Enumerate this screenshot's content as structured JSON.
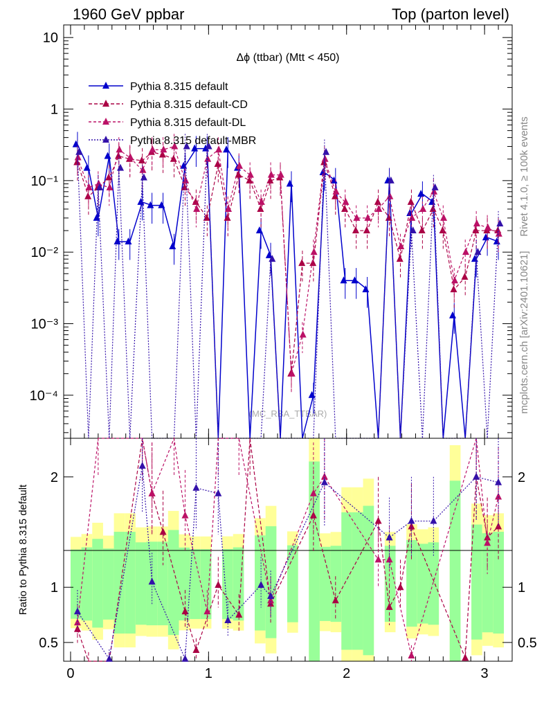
{
  "header": {
    "left": "1960 GeV ppbar",
    "right": "Top (parton level)"
  },
  "side_labels": {
    "rivet": "Rivet 4.1.0, ≥ 100k events",
    "mcplots": "mcplots.cern.ch [arXiv:2401.10621]"
  },
  "watermark": "(MC_RBA_TTBAR)",
  "chart_data": [
    {
      "type": "line",
      "title": "Δϕ (ttbar) (Mtt < 450)",
      "yscale": "log",
      "xlim": [
        -0.05,
        3.2
      ],
      "ylim": [
        2.5e-05,
        15
      ],
      "y_tick_labels": [
        "10",
        "1",
        "10⁻¹",
        "10⁻²",
        "10⁻³",
        "10⁻⁴"
      ],
      "legend": [
        "Pythia 8.315 default",
        "Pythia 8.315 default-CD",
        "Pythia 8.315 default-DL",
        "Pythia 8.315 default-MBR"
      ],
      "series": [
        {
          "name": "Pythia 8.315 default",
          "color": "#0000cc",
          "x": [
            0.05,
            0.13,
            0.2,
            0.28,
            0.35,
            0.43,
            0.52,
            0.59,
            0.67,
            0.75,
            0.83,
            0.91,
            0.99,
            1.07,
            1.14,
            1.22,
            1.3,
            1.38,
            1.45,
            1.52,
            1.6,
            1.68,
            1.76,
            1.84,
            1.92,
            1.99,
            2.07,
            2.15,
            2.23,
            2.31,
            2.39,
            2.47,
            2.55,
            2.63,
            2.7,
            2.78,
            2.86,
            2.94,
            3.02,
            3.1
          ],
          "y": [
            0.32,
            0.15,
            0.03,
            0.22,
            0.014,
            0.014,
            0.05,
            0.045,
            0.045,
            0.012,
            0.16,
            0.28,
            0.28,
            2e-05,
            0.27,
            0.15,
            2e-05,
            0.02,
            0.009,
            2e-05,
            0.09,
            2e-05,
            0.0001,
            0.13,
            0.1,
            0.004,
            0.004,
            0.003,
            2e-05,
            0.1,
            2e-05,
            0.035,
            0.065,
            0.05,
            2e-05,
            0.0013,
            2e-05,
            0.008,
            0.016,
            0.014
          ]
        },
        {
          "name": "Pythia 8.315 default-CD",
          "color": "#aa0044",
          "x": [
            0.05,
            0.13,
            0.2,
            0.28,
            0.35,
            0.43,
            0.52,
            0.59,
            0.67,
            0.75,
            0.83,
            0.91,
            0.99,
            1.07,
            1.14,
            1.22,
            1.3,
            1.38,
            1.45,
            1.52,
            1.6,
            1.68,
            1.76,
            1.84,
            1.92,
            1.99,
            2.07,
            2.15,
            2.23,
            2.31,
            2.39,
            2.47,
            2.55,
            2.63,
            2.7,
            2.78,
            2.86,
            2.94,
            3.02,
            3.1
          ],
          "y": [
            0.18,
            0.06,
            0.08,
            0.11,
            0.22,
            0.2,
            0.19,
            0.25,
            0.23,
            0.2,
            0.08,
            0.05,
            0.03,
            0.17,
            0.03,
            0.12,
            0.1,
            0.04,
            0.1,
            0.11,
            0.0002,
            0.007,
            0.007,
            0.18,
            0.06,
            0.04,
            0.02,
            0.02,
            0.05,
            0.03,
            0.008,
            0.05,
            0.02,
            0.04,
            0.02,
            0.003,
            0.0045,
            0.02,
            0.02,
            0.02
          ]
        },
        {
          "name": "Pythia 8.315 default-DL",
          "color": "#bb1166",
          "x": [
            0.05,
            0.13,
            0.2,
            0.28,
            0.35,
            0.43,
            0.52,
            0.59,
            0.67,
            0.75,
            0.83,
            0.91,
            0.99,
            1.07,
            1.14,
            1.22,
            1.3,
            1.38,
            1.45,
            1.52,
            1.6,
            1.68,
            1.76,
            1.84,
            1.92,
            1.99,
            2.07,
            2.15,
            2.23,
            2.31,
            2.39,
            2.47,
            2.55,
            2.63,
            2.7,
            2.78,
            2.86,
            2.94,
            3.02,
            3.1
          ],
          "y": [
            0.21,
            0.08,
            0.09,
            0.08,
            0.27,
            0.21,
            0.14,
            0.27,
            0.27,
            0.3,
            0.1,
            0.04,
            0.2,
            0.27,
            0.04,
            0.16,
            0.12,
            0.05,
            0.12,
            0.12,
            0.0002,
            0.0007,
            0.01,
            0.2,
            0.07,
            0.05,
            0.03,
            0.03,
            0.04,
            0.06,
            0.012,
            0.03,
            0.04,
            0.07,
            0.03,
            0.004,
            0.01,
            0.025,
            0.022,
            0.018
          ]
        },
        {
          "name": "Pythia 8.315 default-MBR",
          "color": "#3311aa",
          "x": [
            0.05,
            0.13,
            0.2,
            0.28,
            0.35,
            0.43,
            0.52,
            0.59,
            0.67,
            0.75,
            0.83,
            0.91,
            0.99,
            1.07,
            1.14,
            1.22,
            1.3,
            1.38,
            1.45,
            1.52,
            1.6,
            1.68,
            1.76,
            1.84,
            1.92,
            1.99,
            2.07,
            2.15,
            2.23,
            2.31,
            2.39,
            2.47,
            2.55,
            2.63,
            2.7,
            2.78,
            2.86,
            2.94,
            3.02,
            3.1
          ],
          "y": [
            0.25,
            2e-05,
            0.08,
            2e-05,
            0.15,
            2e-05,
            0.11,
            2e-05,
            2e-05,
            2e-05,
            0.3,
            2e-05,
            0.3,
            2e-05,
            2e-05,
            2e-05,
            2e-05,
            2e-05,
            0.008,
            2e-05,
            2e-05,
            2e-05,
            2e-05,
            0.25,
            2e-05,
            2e-05,
            2e-05,
            2e-05,
            2e-05,
            0.1,
            2e-05,
            0.02,
            2e-05,
            0.08,
            2e-05,
            2e-05,
            2e-05,
            0.01,
            2e-05,
            0.025
          ]
        }
      ]
    },
    {
      "type": "line",
      "title": "",
      "ylabel": "Ratio to Pythia 8.315 default",
      "xlim": [
        -0.05,
        3.2
      ],
      "ylim": [
        0.33,
        2.35
      ],
      "x_tick_labels": [
        "0",
        "1",
        "2",
        "3"
      ],
      "y_tick_labels": [
        "0.5",
        "1",
        "2"
      ],
      "series": [
        {
          "name": "Pythia 8.315 default-CD",
          "color": "#aa0044",
          "x": [
            0.05,
            0.13,
            0.28,
            0.52,
            0.59,
            0.67,
            0.83,
            0.91,
            1.07,
            1.22,
            1.3,
            1.45,
            1.76,
            1.92,
            2.23,
            2.31,
            2.39,
            2.47,
            2.86,
            2.94,
            3.02,
            3.1
          ],
          "y": [
            0.62,
            0.33,
            0.33,
            2.45,
            1.85,
            1.5,
            0.78,
            0.43,
            1.02,
            0.75,
            2.5,
            0.85,
            1.65,
            0.88,
            1.6,
            0.82,
            1.0,
            1.55,
            0.36,
            2.0,
            1.45,
            1.55
          ]
        },
        {
          "name": "Pythia 8.315 default-DL",
          "color": "#bb1166",
          "x": [
            0.05,
            0.2,
            0.52,
            0.59,
            0.75,
            0.83,
            0.99,
            1.07,
            1.22,
            1.45,
            1.76,
            1.84,
            2.23,
            2.31,
            2.47,
            2.94,
            3.02,
            3.1
          ],
          "y": [
            0.68,
            2.5,
            2.5,
            1.85,
            2.5,
            1.65,
            0.78,
            2.5,
            2.5,
            0.88,
            1.85,
            2.0,
            1.25,
            1.25,
            0.38,
            2.5,
            1.4,
            1.82
          ]
        },
        {
          "name": "Pythia 8.315 default-MBR",
          "color": "#3311aa",
          "x": [
            0.05,
            0.28,
            0.52,
            0.59,
            0.83,
            0.91,
            1.07,
            1.14,
            1.38,
            1.45,
            1.84,
            2.31,
            2.47,
            2.63,
            2.94,
            3.1
          ],
          "y": [
            0.78,
            0.35,
            2.1,
            1.05,
            0.35,
            1.9,
            1.85,
            0.7,
            1.02,
            0.92,
            1.95,
            1.45,
            1.6,
            1.6,
            2.0,
            1.95
          ]
        }
      ],
      "reference_line": 1
    }
  ]
}
